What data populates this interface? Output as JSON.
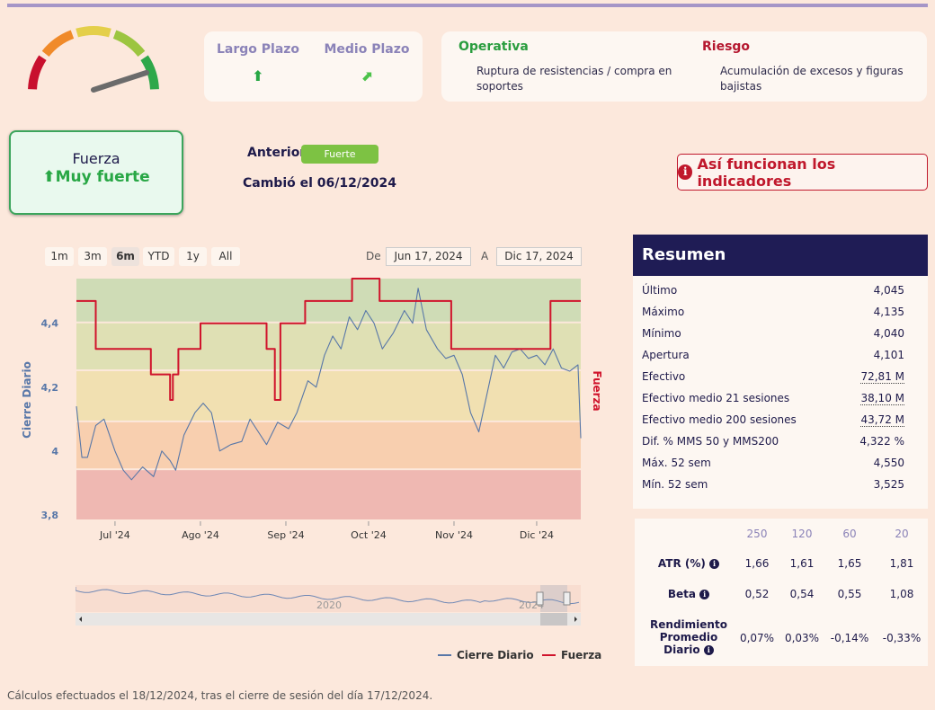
{
  "gauge": {
    "level": 0.9,
    "segments": [
      "#c8102e",
      "#f08a2a",
      "#e4cf4a",
      "#9cc540",
      "#2ea84a"
    ],
    "needle_color": "#6b6b6b"
  },
  "tendency": {
    "long_label": "Largo Plazo",
    "long_icon": "arrow-up-icon",
    "long_symbol": "⬆",
    "mid_label": "Medio Plazo",
    "mid_icon": "arrow-up-right-icon",
    "mid_symbol": "⬈"
  },
  "operativa": {
    "title": "Operativa",
    "text": "Ruptura de resistencias / compra en soportes",
    "color": "#2a9d3f"
  },
  "riesgo": {
    "title": "Riesgo",
    "text": "Acumulación de excesos y figuras bajistas",
    "color": "#b5172f"
  },
  "fuerza": {
    "title": "Fuerza",
    "value": "Muy fuerte",
    "icon": "⬆"
  },
  "anterior": {
    "label": "Anterior",
    "value": "Fuerte"
  },
  "cambio": "Cambió el 06/12/2024",
  "info_button": {
    "label": "Así funcionan los indicadores",
    "icon": "i"
  },
  "range_buttons": [
    "1m",
    "3m",
    "6m",
    "YTD",
    "1y",
    "All"
  ],
  "range_selected": "6m",
  "date_range": {
    "from_label": "De",
    "from": "Jun 17, 2024",
    "to_label": "A",
    "to": "Dic 17, 2024"
  },
  "chart_data": {
    "type": "line",
    "ylabel": "Cierre Diario",
    "y2label": "Fuerza",
    "ylim": [
      3.78,
      4.54
    ],
    "yticks": [
      "4,4",
      "4,2",
      "4",
      "3,8"
    ],
    "ytick_values": [
      4.4,
      4.2,
      4.0,
      3.8
    ],
    "xticks": [
      "Jul '24",
      "Ago '24",
      "Sep '24",
      "Oct '24",
      "Nov '24",
      "Dic '24"
    ],
    "xtick_dates": [
      "2024-07-01",
      "2024-08-01",
      "2024-09-01",
      "2024-10-01",
      "2024-11-01",
      "2024-12-01"
    ],
    "x_range": [
      "2024-06-17",
      "2024-12-17"
    ],
    "zones": [
      {
        "from": 4.4,
        "to": 4.55,
        "color": "#cfdcb6"
      },
      {
        "from": 4.25,
        "to": 4.4,
        "color": "#dfe0b4"
      },
      {
        "from": 4.09,
        "to": 4.25,
        "color": "#f1e0b1"
      },
      {
        "from": 3.94,
        "to": 4.09,
        "color": "#f8cfaf"
      },
      {
        "from": 3.78,
        "to": 3.94,
        "color": "#efb8b2"
      }
    ],
    "series": [
      {
        "name": "Cierre Diario",
        "color": "#5877a8",
        "points": [
          [
            "2024-06-17",
            4.14
          ],
          [
            "2024-06-19",
            3.98
          ],
          [
            "2024-06-21",
            3.98
          ],
          [
            "2024-06-24",
            4.08
          ],
          [
            "2024-06-27",
            4.1
          ],
          [
            "2024-07-01",
            4.0
          ],
          [
            "2024-07-04",
            3.94
          ],
          [
            "2024-07-07",
            3.91
          ],
          [
            "2024-07-09",
            3.93
          ],
          [
            "2024-07-11",
            3.95
          ],
          [
            "2024-07-15",
            3.92
          ],
          [
            "2024-07-18",
            4.0
          ],
          [
            "2024-07-21",
            3.97
          ],
          [
            "2024-07-23",
            3.94
          ],
          [
            "2024-07-26",
            4.05
          ],
          [
            "2024-07-30",
            4.12
          ],
          [
            "2024-08-02",
            4.15
          ],
          [
            "2024-08-05",
            4.12
          ],
          [
            "2024-08-08",
            4.0
          ],
          [
            "2024-08-12",
            4.02
          ],
          [
            "2024-08-16",
            4.03
          ],
          [
            "2024-08-19",
            4.1
          ],
          [
            "2024-08-22",
            4.06
          ],
          [
            "2024-08-25",
            4.02
          ],
          [
            "2024-08-29",
            4.09
          ],
          [
            "2024-09-02",
            4.07
          ],
          [
            "2024-09-05",
            4.12
          ],
          [
            "2024-09-09",
            4.22
          ],
          [
            "2024-09-12",
            4.2
          ],
          [
            "2024-09-15",
            4.3
          ],
          [
            "2024-09-18",
            4.36
          ],
          [
            "2024-09-21",
            4.32
          ],
          [
            "2024-09-24",
            4.42
          ],
          [
            "2024-09-27",
            4.38
          ],
          [
            "2024-09-30",
            4.44
          ],
          [
            "2024-10-03",
            4.4
          ],
          [
            "2024-10-06",
            4.32
          ],
          [
            "2024-10-10",
            4.37
          ],
          [
            "2024-10-14",
            4.44
          ],
          [
            "2024-10-17",
            4.4
          ],
          [
            "2024-10-19",
            4.51
          ],
          [
            "2024-10-22",
            4.38
          ],
          [
            "2024-10-26",
            4.32
          ],
          [
            "2024-10-29",
            4.29
          ],
          [
            "2024-11-01",
            4.3
          ],
          [
            "2024-11-04",
            4.24
          ],
          [
            "2024-11-07",
            4.12
          ],
          [
            "2024-11-10",
            4.06
          ],
          [
            "2024-11-13",
            4.18
          ],
          [
            "2024-11-16",
            4.3
          ],
          [
            "2024-11-19",
            4.26
          ],
          [
            "2024-11-22",
            4.31
          ],
          [
            "2024-11-25",
            4.32
          ],
          [
            "2024-11-28",
            4.29
          ],
          [
            "2024-12-01",
            4.3
          ],
          [
            "2024-12-04",
            4.27
          ],
          [
            "2024-12-07",
            4.32
          ],
          [
            "2024-12-10",
            4.26
          ],
          [
            "2024-12-13",
            4.25
          ],
          [
            "2024-12-16",
            4.27
          ],
          [
            "2024-12-17",
            4.04
          ]
        ]
      },
      {
        "name": "Fuerza",
        "color": "#d0142c",
        "points": [
          [
            "2024-06-17",
            4.47
          ],
          [
            "2024-06-24",
            4.47
          ],
          [
            "2024-06-24",
            4.32
          ],
          [
            "2024-07-14",
            4.32
          ],
          [
            "2024-07-14",
            4.24
          ],
          [
            "2024-07-21",
            4.24
          ],
          [
            "2024-07-21",
            4.16
          ],
          [
            "2024-07-22",
            4.16
          ],
          [
            "2024-07-22",
            4.24
          ],
          [
            "2024-07-24",
            4.24
          ],
          [
            "2024-07-24",
            4.32
          ],
          [
            "2024-08-01",
            4.32
          ],
          [
            "2024-08-01",
            4.4
          ],
          [
            "2024-08-25",
            4.4
          ],
          [
            "2024-08-25",
            4.32
          ],
          [
            "2024-08-28",
            4.32
          ],
          [
            "2024-08-28",
            4.16
          ],
          [
            "2024-08-30",
            4.16
          ],
          [
            "2024-08-30",
            4.4
          ],
          [
            "2024-09-08",
            4.4
          ],
          [
            "2024-09-08",
            4.47
          ],
          [
            "2024-09-25",
            4.47
          ],
          [
            "2024-09-25",
            4.55
          ],
          [
            "2024-10-05",
            4.55
          ],
          [
            "2024-10-05",
            4.47
          ],
          [
            "2024-10-31",
            4.47
          ],
          [
            "2024-10-31",
            4.32
          ],
          [
            "2024-12-06",
            4.32
          ],
          [
            "2024-12-06",
            4.47
          ],
          [
            "2024-12-17",
            4.47
          ]
        ]
      }
    ],
    "navigator": {
      "labels": [
        "2020",
        "2024"
      ]
    },
    "legend": [
      "Cierre Diario",
      "Fuerza"
    ]
  },
  "resumen": {
    "title": "Resumen",
    "rows": [
      {
        "k": "Último",
        "v": "4,045"
      },
      {
        "k": "Máximo",
        "v": "4,135"
      },
      {
        "k": "Mínimo",
        "v": "4,040"
      },
      {
        "k": "Apertura",
        "v": "4,101"
      },
      {
        "k": "Efectivo",
        "v": "72,81 M"
      },
      {
        "k": "Efectivo medio 21 sesiones",
        "v": "38,10 M"
      },
      {
        "k": "Efectivo medio 200 sesiones",
        "v": "43,72 M"
      },
      {
        "k": "Dif. % MMS 50 y MMS200",
        "v": "4,322 %"
      },
      {
        "k": "Máx. 52 sem",
        "v": "4,550"
      },
      {
        "k": "Mín. 52 sem",
        "v": "3,525"
      }
    ]
  },
  "stats": {
    "headers": [
      "250",
      "120",
      "60",
      "20"
    ],
    "atr_label": "ATR (%)",
    "atr": [
      "1,66",
      "1,61",
      "1,65",
      "1,81"
    ],
    "beta_label": "Beta",
    "beta": [
      "0,52",
      "0,54",
      "0,55",
      "1,08"
    ],
    "rend_label": "Rendimiento Promedio Diario",
    "rend": [
      "0,07%",
      "0,03%",
      "-0,14%",
      "-0,33%"
    ]
  },
  "footer": "Cálculos efectuados el 18/12/2024, tras el cierre de sesión del día 17/12/2024."
}
